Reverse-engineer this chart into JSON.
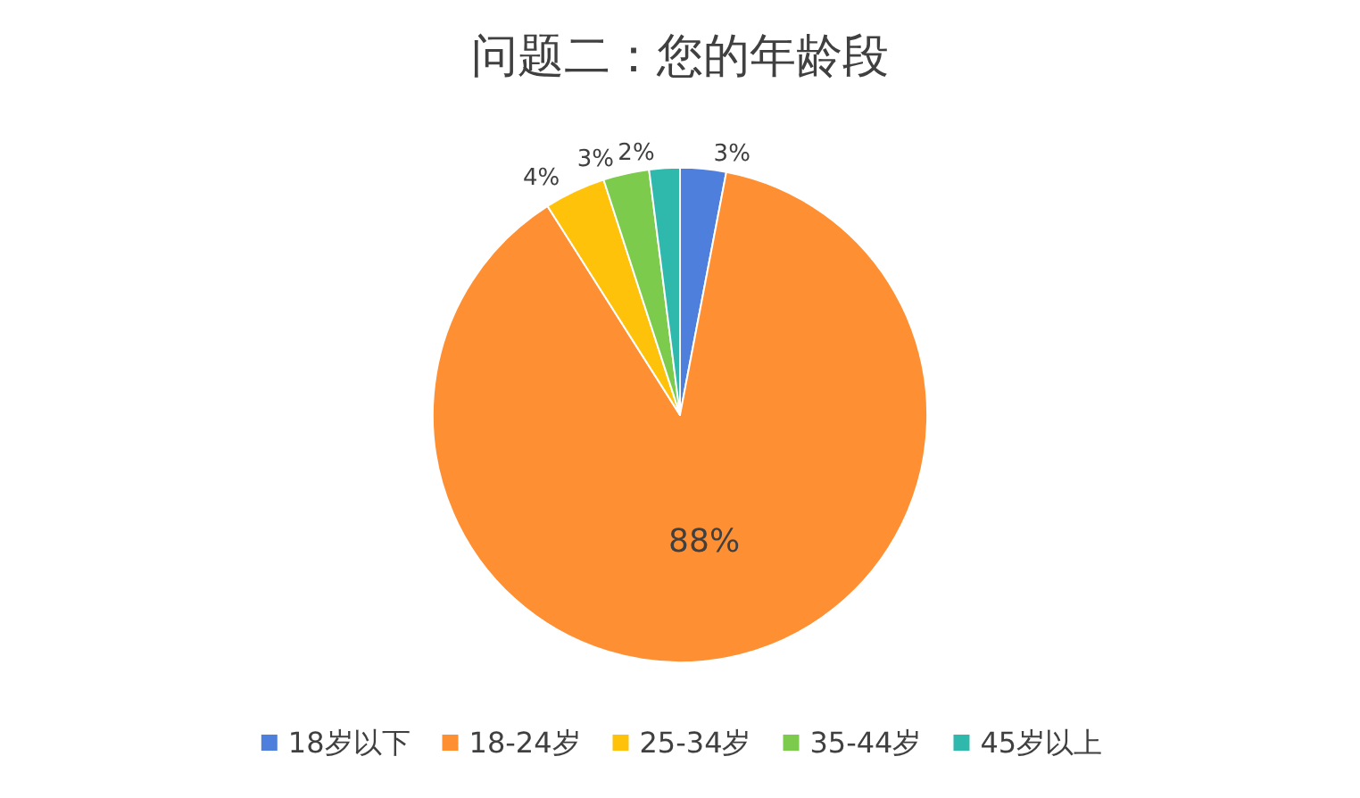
{
  "chart_data": {
    "type": "pie",
    "title": "问题二：您的年龄段",
    "categories": [
      "18岁以下",
      "18-24岁",
      "25-34岁",
      "35-44岁",
      "45岁以上"
    ],
    "values": [
      3,
      88,
      4,
      3,
      2
    ],
    "colors": [
      "#4f7fdc",
      "#ff8f33",
      "#ffc20a",
      "#7ccb4c",
      "#2fb9ad"
    ],
    "value_labels": [
      "3%",
      "88%",
      "4%",
      "3%",
      "2%"
    ],
    "legend": "bottom"
  }
}
